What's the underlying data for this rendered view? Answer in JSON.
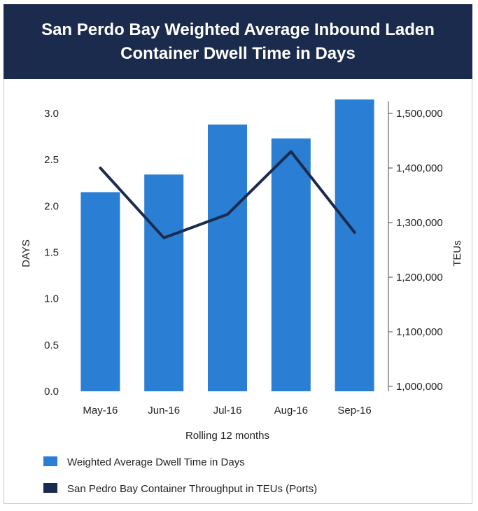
{
  "chart_data": {
    "type": "bar",
    "title_line1": "San Perdo Bay Weighted Average Inbound Laden",
    "title_line2": "Container Dwell Time in Days",
    "categories": [
      "May-16",
      "Jun-16",
      "Jul-16",
      "Aug-16",
      "Sep-16"
    ],
    "xlabel": "Rolling 12 months",
    "ylabel_left": "DAYS",
    "ylabel_right": "TEUs",
    "ylim_left": [
      0,
      3.0
    ],
    "yticks_left": [
      "0.0",
      "0.5",
      "1.0",
      "1.5",
      "2.0",
      "2.5",
      "3.0"
    ],
    "ylim_right": [
      1000000,
      1500000
    ],
    "yticks_right": [
      "1,000,000",
      "1,100,000",
      "1,200,000",
      "1,300,000",
      "1,400,000",
      "1,500,000"
    ],
    "grid": false,
    "legend_position": "bottom-left",
    "series": [
      {
        "name": "Weighted Average Dwell Time in Days",
        "type": "bar",
        "axis": "left",
        "color": "#2a7fd4",
        "values": [
          2.15,
          2.34,
          2.88,
          2.73,
          3.15
        ]
      },
      {
        "name": "San Pedro Bay Container Throughput in TEUs (Ports)",
        "type": "line",
        "axis": "right",
        "color": "#1b2b4d",
        "values": [
          1400000,
          1272000,
          1315000,
          1430000,
          1282000
        ]
      }
    ]
  }
}
